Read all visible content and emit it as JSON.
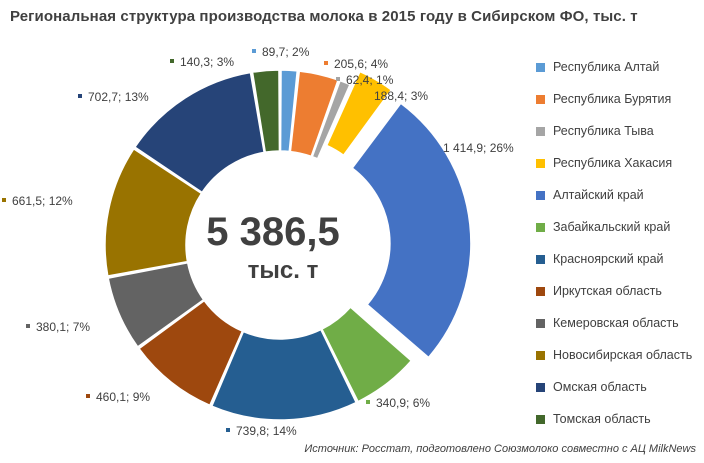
{
  "title": "Региональная структура производства молока в 2015 году в Сибирском ФО, тыс. т",
  "center": {
    "total": "5 386,5",
    "unit": "тыс. т"
  },
  "source": "Источник: Росстат, подготовлено Союзмолоко совместно с АЦ MilkNews",
  "chart_data": {
    "type": "pie",
    "title": "Региональная структура производства молока в 2015 году в Сибирском ФО, тыс. т",
    "donut": true,
    "exploded": [
      "Республика Хакасия",
      "Алтайский край"
    ],
    "legend_position": "right",
    "categories": [
      "Республика Алтай",
      "Республика Бурятия",
      "Республика Тыва",
      "Республика Хакасия",
      "Алтайский край",
      "Забайкальский край",
      "Красноярский край",
      "Иркутская область",
      "Кемеровская область",
      "Новосибирская область",
      "Омская область",
      "Томская область"
    ],
    "values": [
      89.7,
      205.6,
      62.4,
      188.4,
      1414.9,
      340.9,
      739.8,
      460.1,
      380.1,
      661.5,
      702.7,
      140.3
    ],
    "data_labels": [
      "89,7; 2%",
      "205,6; 4%",
      "62,4; 1%",
      "188,4; 3%",
      "1 414,9; 26%",
      "340,9; 6%",
      "739,8; 14%",
      "460,1; 9%",
      "380,1; 7%",
      "661,5; 12%",
      "702,7; 13%",
      "140,3; 3%"
    ],
    "colors": [
      "#5B9BD5",
      "#ED7D31",
      "#A5A5A5",
      "#FFC000",
      "#4472C4",
      "#70AD47",
      "#255E91",
      "#9E480E",
      "#636363",
      "#997300",
      "#264478",
      "#43682B"
    ]
  }
}
